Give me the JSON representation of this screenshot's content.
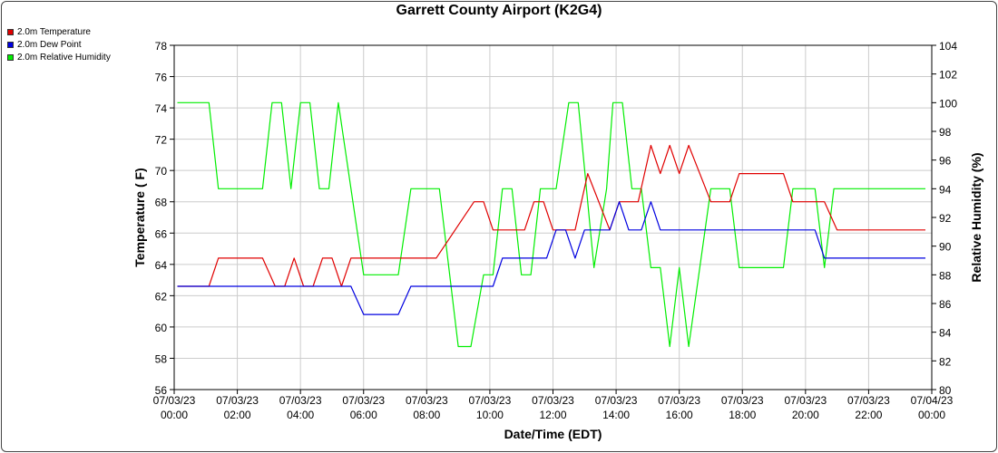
{
  "chart_data": {
    "type": "line",
    "title": "Garrett County Airport (K2G4)",
    "xlabel": "Date/Time (EDT)",
    "ylabel": "Temperature ( F)",
    "y2label": "Relative Humidity (%)",
    "ylim": [
      56,
      78
    ],
    "y2lim": [
      80,
      104
    ],
    "xlim": [
      0,
      24
    ],
    "grid": true,
    "legend_position": "top-left",
    "yticks": [
      56,
      58,
      60,
      62,
      64,
      66,
      68,
      70,
      72,
      74,
      76,
      78
    ],
    "y2ticks": [
      80,
      82,
      84,
      86,
      88,
      90,
      92,
      94,
      96,
      98,
      100,
      102,
      104
    ],
    "xticks": [
      {
        "date": "07/03/23",
        "time": "00:00"
      },
      {
        "date": "07/03/23",
        "time": "02:00"
      },
      {
        "date": "07/03/23",
        "time": "04:00"
      },
      {
        "date": "07/03/23",
        "time": "06:00"
      },
      {
        "date": "07/03/23",
        "time": "08:00"
      },
      {
        "date": "07/03/23",
        "time": "10:00"
      },
      {
        "date": "07/03/23",
        "time": "12:00"
      },
      {
        "date": "07/03/23",
        "time": "14:00"
      },
      {
        "date": "07/03/23",
        "time": "16:00"
      },
      {
        "date": "07/03/23",
        "time": "18:00"
      },
      {
        "date": "07/03/23",
        "time": "20:00"
      },
      {
        "date": "07/03/23",
        "time": "22:00"
      },
      {
        "date": "07/04/23",
        "time": "00:00"
      }
    ],
    "series": [
      {
        "name": "2.0m Temperature",
        "color": "#e00000",
        "axis": "left",
        "points": [
          [
            0.1,
            62.6
          ],
          [
            1.1,
            62.6
          ],
          [
            1.4,
            64.4
          ],
          [
            2.8,
            64.4
          ],
          [
            3.2,
            62.6
          ],
          [
            3.5,
            62.6
          ],
          [
            3.8,
            64.4
          ],
          [
            4.1,
            62.6
          ],
          [
            4.4,
            62.6
          ],
          [
            4.7,
            64.4
          ],
          [
            5.0,
            64.4
          ],
          [
            5.3,
            62.6
          ],
          [
            5.6,
            64.4
          ],
          [
            8.3,
            64.4
          ],
          [
            9.5,
            68.0
          ],
          [
            9.8,
            68.0
          ],
          [
            10.1,
            66.2
          ],
          [
            11.1,
            66.2
          ],
          [
            11.4,
            68.0
          ],
          [
            11.7,
            68.0
          ],
          [
            12.0,
            66.2
          ],
          [
            12.7,
            66.2
          ],
          [
            13.1,
            69.8
          ],
          [
            13.8,
            66.2
          ],
          [
            14.1,
            68.0
          ],
          [
            14.7,
            68.0
          ],
          [
            15.1,
            71.6
          ],
          [
            15.4,
            69.8
          ],
          [
            15.7,
            71.6
          ],
          [
            16.0,
            69.8
          ],
          [
            16.3,
            71.6
          ],
          [
            17.0,
            68.0
          ],
          [
            17.6,
            68.0
          ],
          [
            17.9,
            69.8
          ],
          [
            19.3,
            69.8
          ],
          [
            19.6,
            68.0
          ],
          [
            20.6,
            68.0
          ],
          [
            21.0,
            66.2
          ],
          [
            23.8,
            66.2
          ]
        ]
      },
      {
        "name": "2.0m Dew Point",
        "color": "#0000e0",
        "axis": "left",
        "points": [
          [
            0.1,
            62.6
          ],
          [
            5.6,
            62.6
          ],
          [
            6.0,
            60.8
          ],
          [
            7.1,
            60.8
          ],
          [
            7.5,
            62.6
          ],
          [
            10.1,
            62.6
          ],
          [
            10.4,
            64.4
          ],
          [
            11.8,
            64.4
          ],
          [
            12.1,
            66.2
          ],
          [
            12.4,
            66.2
          ],
          [
            12.7,
            64.4
          ],
          [
            13.0,
            66.2
          ],
          [
            13.8,
            66.2
          ],
          [
            14.1,
            68.0
          ],
          [
            14.4,
            66.2
          ],
          [
            14.8,
            66.2
          ],
          [
            15.1,
            68.0
          ],
          [
            15.4,
            66.2
          ],
          [
            20.3,
            66.2
          ],
          [
            20.6,
            64.4
          ],
          [
            23.8,
            64.4
          ]
        ]
      },
      {
        "name": "2.0m Relative Humidity",
        "color": "#00ee00",
        "axis": "right",
        "points": [
          [
            0.1,
            100
          ],
          [
            1.1,
            100
          ],
          [
            1.4,
            94
          ],
          [
            2.8,
            94
          ],
          [
            3.1,
            100
          ],
          [
            3.4,
            100
          ],
          [
            3.7,
            94
          ],
          [
            4.0,
            100
          ],
          [
            4.3,
            100
          ],
          [
            4.6,
            94
          ],
          [
            4.9,
            94
          ],
          [
            5.2,
            100
          ],
          [
            6.0,
            88
          ],
          [
            7.1,
            88
          ],
          [
            7.5,
            94
          ],
          [
            8.4,
            94
          ],
          [
            9.0,
            83
          ],
          [
            9.4,
            83
          ],
          [
            9.8,
            88
          ],
          [
            10.1,
            88
          ],
          [
            10.4,
            94
          ],
          [
            10.7,
            94
          ],
          [
            11.0,
            88
          ],
          [
            11.3,
            88
          ],
          [
            11.6,
            94
          ],
          [
            12.1,
            94
          ],
          [
            12.5,
            100
          ],
          [
            12.8,
            100
          ],
          [
            13.3,
            88.5
          ],
          [
            13.7,
            94
          ],
          [
            13.9,
            100
          ],
          [
            14.2,
            100
          ],
          [
            14.5,
            94
          ],
          [
            14.8,
            94
          ],
          [
            15.1,
            88.5
          ],
          [
            15.4,
            88.5
          ],
          [
            15.7,
            83
          ],
          [
            16.0,
            88.5
          ],
          [
            16.3,
            83
          ],
          [
            17.0,
            94
          ],
          [
            17.6,
            94
          ],
          [
            17.9,
            88.5
          ],
          [
            19.3,
            88.5
          ],
          [
            19.6,
            94
          ],
          [
            20.3,
            94
          ],
          [
            20.6,
            88.5
          ],
          [
            20.9,
            94
          ],
          [
            23.8,
            94
          ]
        ]
      }
    ]
  }
}
